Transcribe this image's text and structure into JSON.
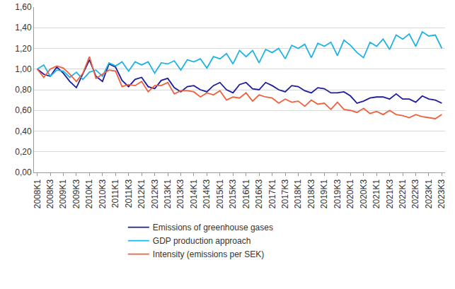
{
  "chart_data": {
    "type": "line",
    "categories": [
      "2008K1",
      null,
      "2008K3",
      null,
      "2009K1",
      null,
      "2009K3",
      null,
      "2010K1",
      null,
      "2010K3",
      null,
      "2011K1",
      null,
      "2011K3",
      null,
      "2012K1",
      null,
      "2012K3",
      null,
      "2013K1",
      null,
      "2013K3",
      null,
      "2014K1",
      null,
      "2014K3",
      null,
      "2015K1",
      null,
      "2015K3",
      null,
      "2016K1",
      null,
      "2016K3",
      null,
      "2017K1",
      null,
      "2017K3",
      null,
      "2018K1",
      null,
      "2018K3",
      null,
      "2019K1",
      null,
      "2019K3",
      null,
      "2020K1",
      null,
      "2020K3",
      null,
      "2021K1",
      null,
      "2021K3",
      null,
      "2022K1",
      null,
      "2022K3",
      null,
      "2023K1",
      null,
      "2023K3"
    ],
    "series": [
      {
        "name": "Emissions of greenhouse gases",
        "color": "#1c1c9c",
        "values": [
          1.0,
          0.95,
          0.93,
          1.02,
          0.96,
          0.88,
          0.82,
          0.96,
          1.09,
          0.93,
          0.88,
          1.05,
          1.02,
          0.89,
          0.83,
          0.9,
          0.92,
          0.83,
          0.81,
          0.89,
          0.91,
          0.82,
          0.78,
          0.83,
          0.84,
          0.8,
          0.78,
          0.84,
          0.87,
          0.8,
          0.77,
          0.85,
          0.87,
          0.81,
          0.8,
          0.87,
          0.84,
          0.8,
          0.78,
          0.84,
          0.83,
          0.79,
          0.77,
          0.82,
          0.81,
          0.77,
          0.77,
          0.78,
          0.74,
          0.67,
          0.69,
          0.72,
          0.73,
          0.73,
          0.71,
          0.76,
          0.71,
          0.71,
          0.68,
          0.74,
          0.71,
          0.7,
          0.67
        ]
      },
      {
        "name": "GDP production approach",
        "color": "#1fb3e5",
        "values": [
          1.0,
          1.04,
          0.93,
          0.99,
          0.98,
          0.92,
          0.97,
          0.9,
          0.97,
          0.99,
          0.93,
          1.06,
          1.03,
          1.07,
          0.98,
          1.07,
          1.04,
          1.07,
          0.96,
          1.06,
          1.05,
          1.08,
          0.99,
          1.09,
          1.07,
          1.1,
          1.01,
          1.12,
          1.1,
          1.15,
          1.05,
          1.18,
          1.12,
          1.18,
          1.06,
          1.19,
          1.16,
          1.2,
          1.1,
          1.23,
          1.2,
          1.24,
          1.11,
          1.25,
          1.22,
          1.26,
          1.13,
          1.28,
          1.23,
          1.16,
          1.11,
          1.26,
          1.22,
          1.29,
          1.19,
          1.33,
          1.29,
          1.34,
          1.22,
          1.36,
          1.32,
          1.33,
          1.2
        ]
      },
      {
        "name": "Intensity (emissions per SEK)",
        "color": "#f0603c",
        "values": [
          1.0,
          0.92,
          1.0,
          1.03,
          1.01,
          0.95,
          0.88,
          0.96,
          1.12,
          0.91,
          0.95,
          0.99,
          0.98,
          0.83,
          0.85,
          0.84,
          0.88,
          0.78,
          0.84,
          0.84,
          0.87,
          0.76,
          0.79,
          0.79,
          0.78,
          0.73,
          0.77,
          0.75,
          0.79,
          0.7,
          0.73,
          0.72,
          0.77,
          0.69,
          0.75,
          0.73,
          0.72,
          0.67,
          0.71,
          0.68,
          0.69,
          0.64,
          0.7,
          0.66,
          0.67,
          0.61,
          0.68,
          0.61,
          0.6,
          0.58,
          0.62,
          0.57,
          0.59,
          0.56,
          0.6,
          0.56,
          0.55,
          0.53,
          0.56,
          0.54,
          0.53,
          0.52,
          0.56
        ]
      }
    ],
    "ylim": [
      0,
      1.6
    ],
    "yticks": [
      {
        "value": 0,
        "label": "0,00"
      },
      {
        "value": 0.2,
        "label": "0,20"
      },
      {
        "value": 0.4,
        "label": "0,40"
      },
      {
        "value": 0.6,
        "label": "0,60"
      },
      {
        "value": 0.8,
        "label": "0,80"
      },
      {
        "value": 1.0,
        "label": "1,00"
      },
      {
        "value": 1.2,
        "label": "1,20"
      },
      {
        "value": 1.4,
        "label": "1,40"
      },
      {
        "value": 1.6,
        "label": "1,60"
      }
    ],
    "grid": true,
    "legend": "bottom"
  }
}
